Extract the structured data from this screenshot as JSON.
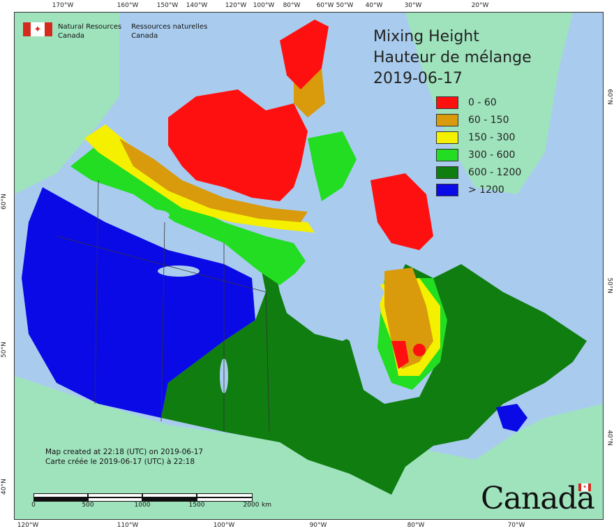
{
  "header": {
    "agency_en_line1": "Natural Resources",
    "agency_en_line2": "Canada",
    "agency_fr_line1": "Ressources naturelles",
    "agency_fr_line2": "Canada"
  },
  "title": {
    "en": "Mixing Height",
    "fr": "Hauteur de mélange",
    "date": "2019-06-17"
  },
  "legend": [
    {
      "label": "0 - 60",
      "color": "#ff1010"
    },
    {
      "label": "60 - 150",
      "color": "#d99a0c"
    },
    {
      "label": "150 - 300",
      "color": "#f5f000"
    },
    {
      "label": "300 - 600",
      "color": "#22dd22"
    },
    {
      "label": "600 - 1200",
      "color": "#0f7d0f"
    },
    {
      "label": "> 1200",
      "color": "#0a0ae6"
    }
  ],
  "footer": {
    "created_en": "Map created at 22:18 (UTC) on 2019-06-17",
    "created_fr": "Carte créée le 2019-06-17 (UTC) à 22:18",
    "wordmark": "Canada"
  },
  "scale": {
    "labels": [
      "0",
      "500",
      "1000",
      "1500",
      "2000"
    ],
    "unit": "km"
  },
  "ticks": {
    "top": [
      "170°W",
      "160°W",
      "150°W",
      "140°W",
      "120°W",
      "100°W",
      "80°W",
      "60°W",
      "50°W",
      "40°W",
      "30°W",
      "20°W"
    ],
    "bottom": [
      "120°W",
      "110°W",
      "100°W",
      "90°W",
      "80°W",
      "70°W"
    ],
    "left": [
      "60°N",
      "50°N",
      "40°N"
    ],
    "right": [
      "60°N",
      "50°N",
      "40°N"
    ]
  },
  "colors": {
    "ocean": "#a9ccee",
    "foreign_land": "#9fe3bd"
  }
}
